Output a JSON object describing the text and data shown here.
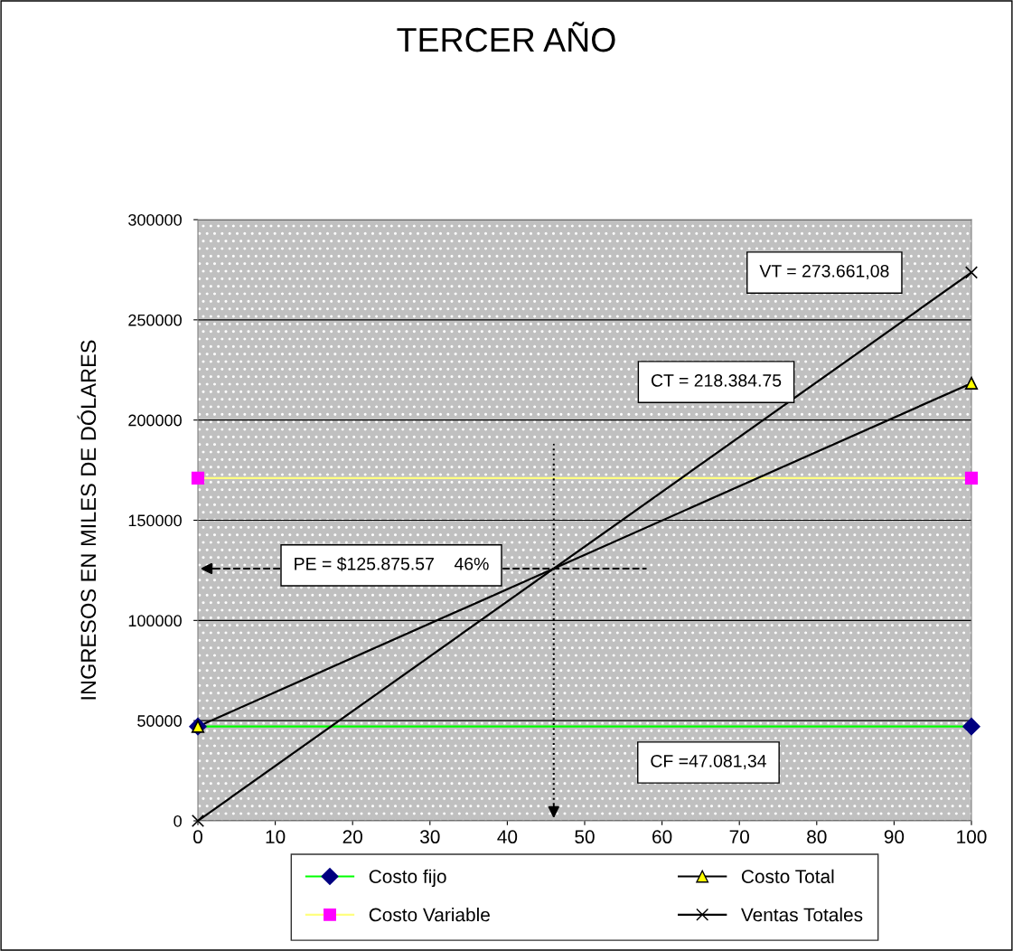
{
  "chart_data": {
    "type": "line",
    "title": "TERCER AÑO",
    "ylabel": "INGRESOS EN MILES DE DÓLARES",
    "x": [
      0,
      100
    ],
    "series": [
      {
        "name": "Costo fijo",
        "color": "#00ff00",
        "colors": [
          "#000080",
          "#000080"
        ],
        "marker": "diamond",
        "values": [
          47081.34,
          47081.34
        ]
      },
      {
        "name": "Costo Variable",
        "color": "#ffff80",
        "colors": [
          "#ff00ff",
          "#ff00ff"
        ],
        "marker": "square",
        "values": [
          171000,
          171000
        ]
      },
      {
        "name": "Costo Total",
        "color": "#000000",
        "colors": [
          "#ffff00",
          "#ffff00"
        ],
        "marker": "triangle",
        "values": [
          47081.34,
          218384.75
        ]
      },
      {
        "name": "Ventas Totales",
        "color": "#000000",
        "colors": [
          "#000000",
          "#000000"
        ],
        "marker": "cross",
        "values": [
          0,
          273661.08
        ]
      }
    ],
    "xlim": [
      0,
      100
    ],
    "xticks": [
      0,
      10,
      20,
      30,
      40,
      50,
      60,
      70,
      80,
      90,
      100
    ],
    "ylim": [
      0,
      300000
    ],
    "yticks": [
      0,
      50000,
      100000,
      150000,
      200000,
      250000,
      300000
    ],
    "grid": "y",
    "legend": "bottom",
    "ref_lines": [
      {
        "axis": "y",
        "value": 125875.57,
        "line_style": "dashed",
        "color": "#000000"
      },
      {
        "axis": "x",
        "value": 46,
        "line_style": "dotted",
        "color": "#000000"
      }
    ],
    "annotations": [
      "VT = 273.661,08",
      "CT = 218.384.75",
      "PE = $125.875.57    46%",
      "CF =47.081,34"
    ]
  }
}
